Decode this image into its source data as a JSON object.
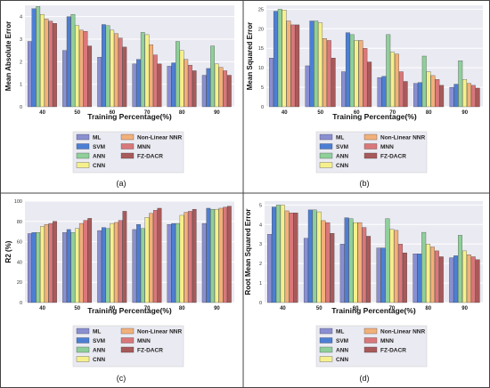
{
  "figure": {
    "xlabel": "Training Percentage(%)",
    "categories": [
      "40",
      "50",
      "60",
      "70",
      "80",
      "90"
    ],
    "series_names": [
      "ML",
      "SVM",
      "ANN",
      "CNN",
      "Non-Linear NNR",
      "MNN",
      "FZ-DACR"
    ],
    "colors": [
      "#8a8fd1",
      "#4c7fd4",
      "#8fcf9a",
      "#f5f08c",
      "#f2b07a",
      "#d9777a",
      "#a85a5a"
    ]
  },
  "chart_data": [
    {
      "type": "bar",
      "panel_label": "(a)",
      "ylabel": "Mean Absolute Error",
      "xlabel": "Training Percentage(%)",
      "categories": [
        "40",
        "50",
        "60",
        "70",
        "80",
        "90"
      ],
      "ylim": [
        0,
        4.5
      ],
      "yticks": [
        0,
        1,
        2,
        3,
        4
      ],
      "grid": true,
      "legend": "below",
      "series": [
        {
          "name": "ML",
          "values": [
            2.9,
            2.5,
            2.2,
            1.9,
            1.8,
            1.4
          ]
        },
        {
          "name": "SVM",
          "values": [
            4.35,
            4.0,
            3.65,
            2.1,
            1.95,
            1.7
          ]
        },
        {
          "name": "ANN",
          "values": [
            4.45,
            4.1,
            3.6,
            3.3,
            2.9,
            2.7
          ]
        },
        {
          "name": "CNN",
          "values": [
            4.1,
            3.6,
            3.4,
            3.2,
            2.5,
            1.9
          ]
        },
        {
          "name": "Non-Linear NNR",
          "values": [
            3.9,
            3.4,
            3.25,
            2.75,
            2.1,
            1.75
          ]
        },
        {
          "name": "MNN",
          "values": [
            3.8,
            3.35,
            3.05,
            2.3,
            1.85,
            1.6
          ]
        },
        {
          "name": "FZ-DACR",
          "values": [
            3.7,
            2.7,
            2.65,
            1.9,
            1.6,
            1.4
          ]
        }
      ]
    },
    {
      "type": "bar",
      "panel_label": "(b)",
      "ylabel": "Mean Squared Error",
      "xlabel": "Training Percentage(%)",
      "categories": [
        "40",
        "50",
        "60",
        "70",
        "80",
        "90"
      ],
      "ylim": [
        0,
        26
      ],
      "yticks": [
        0,
        5,
        10,
        15,
        20,
        25
      ],
      "grid": true,
      "legend": "below",
      "series": [
        {
          "name": "ML",
          "values": [
            12.5,
            10.5,
            9.0,
            7.5,
            6.0,
            5.0
          ]
        },
        {
          "name": "SVM",
          "values": [
            24.5,
            22.0,
            19.0,
            7.8,
            6.2,
            5.8
          ]
        },
        {
          "name": "ANN",
          "values": [
            25.0,
            22.0,
            18.5,
            18.5,
            13.0,
            11.8
          ]
        },
        {
          "name": "CNN",
          "values": [
            24.8,
            21.5,
            17.0,
            14.0,
            9.0,
            7.0
          ]
        },
        {
          "name": "Non-Linear NNR",
          "values": [
            22.0,
            17.5,
            17.0,
            13.5,
            8.0,
            6.0
          ]
        },
        {
          "name": "MNN",
          "values": [
            21.0,
            17.0,
            15.0,
            9.0,
            7.0,
            5.5
          ]
        },
        {
          "name": "FZ-DACR",
          "values": [
            21.0,
            12.5,
            11.5,
            6.5,
            5.5,
            4.8
          ]
        }
      ]
    },
    {
      "type": "bar",
      "panel_label": "(c)",
      "ylabel": "R2 (%)",
      "xlabel": "Training Percentage(%)",
      "categories": [
        "40",
        "50",
        "60",
        "70",
        "80",
        "90"
      ],
      "ylim": [
        0,
        100
      ],
      "yticks": [
        0,
        20,
        40,
        60,
        80,
        100
      ],
      "grid": true,
      "legend": "below",
      "series": [
        {
          "name": "ML",
          "values": [
            68,
            69,
            71,
            72,
            77,
            78
          ]
        },
        {
          "name": "SVM",
          "values": [
            69,
            72,
            74,
            77,
            78,
            93
          ]
        },
        {
          "name": "ANN",
          "values": [
            69,
            69,
            73,
            73,
            78,
            92
          ]
        },
        {
          "name": "CNN",
          "values": [
            75,
            73,
            78,
            84,
            86,
            92
          ]
        },
        {
          "name": "Non-Linear NNR",
          "values": [
            77,
            78,
            79,
            88,
            89,
            93
          ]
        },
        {
          "name": "MNN",
          "values": [
            78,
            81,
            81,
            91,
            90,
            94
          ]
        },
        {
          "name": "FZ-DACR",
          "values": [
            80,
            83,
            90,
            93,
            92,
            95
          ]
        }
      ]
    },
    {
      "type": "bar",
      "panel_label": "(d)",
      "ylabel": "Root Mean Squared Error",
      "xlabel": "Training Percentage(%)",
      "categories": [
        "40",
        "50",
        "60",
        "70",
        "80",
        "90"
      ],
      "ylim": [
        0,
        5.2
      ],
      "yticks": [
        0,
        1,
        2,
        3,
        4,
        5
      ],
      "grid": true,
      "legend": "below",
      "series": [
        {
          "name": "ML",
          "values": [
            3.5,
            3.3,
            3.0,
            2.8,
            2.5,
            2.3
          ]
        },
        {
          "name": "SVM",
          "values": [
            4.9,
            4.75,
            4.35,
            2.8,
            2.5,
            2.4
          ]
        },
        {
          "name": "ANN",
          "values": [
            5.0,
            4.75,
            4.3,
            4.3,
            3.6,
            3.45
          ]
        },
        {
          "name": "CNN",
          "values": [
            5.0,
            4.65,
            4.1,
            3.75,
            3.0,
            2.65
          ]
        },
        {
          "name": "Non-Linear NNR",
          "values": [
            4.7,
            4.2,
            4.1,
            3.7,
            2.85,
            2.45
          ]
        },
        {
          "name": "MNN",
          "values": [
            4.6,
            4.1,
            3.85,
            3.0,
            2.65,
            2.35
          ]
        },
        {
          "name": "FZ-DACR",
          "values": [
            4.6,
            3.55,
            3.4,
            2.55,
            2.35,
            2.2
          ]
        }
      ]
    }
  ]
}
